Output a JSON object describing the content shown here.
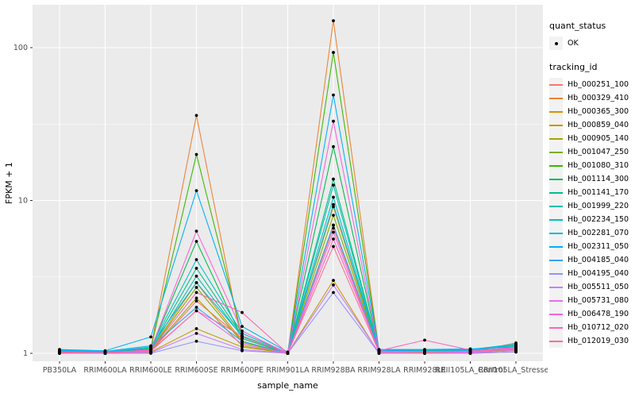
{
  "figure": {
    "background": "#FFFFFF",
    "panel_background": "#EBEBEB",
    "gridline_color": "#FFFFFF",
    "tick_color": "#333333",
    "tick_label_color": "#4D4D4D",
    "point_color": "#000000",
    "legend_key_background": "#F2F2F2"
  },
  "chart_data": {
    "type": "line",
    "title": "",
    "xlabel": "sample_name",
    "ylabel": "FPKM + 1",
    "y_scale": "log10",
    "ylim_px_note": "log scale, breaks 1/10/100",
    "y_ticks": [
      1,
      10,
      100
    ],
    "y_tick_labels": [
      "1",
      "10",
      "100"
    ],
    "y_minor_ticks": [
      3.162,
      31.623
    ],
    "grid": "on",
    "legend_position": "right",
    "categories": [
      "PB350LA",
      "RRIM600LA",
      "RRIM600LE",
      "RRIM600SE",
      "RRIM600PE",
      "RRIM901LA",
      "RRIM928BA",
      "RRIM928LA",
      "RRIM928LE",
      "RRII105LA_Control",
      "RRII105LA_Stressed"
    ],
    "series": [
      {
        "name": "Hb_000251_100",
        "color": "#F8766D",
        "values": [
          1.02,
          1.01,
          1.03,
          2.2,
          1.25,
          1.0,
          6.6,
          1.02,
          1.01,
          1.02,
          1.17
        ]
      },
      {
        "name": "Hb_000329_410",
        "color": "#EA8331",
        "values": [
          1.0,
          1.0,
          1.08,
          36,
          1.15,
          1.0,
          150,
          1.04,
          1.0,
          1.0,
          1.05
        ]
      },
      {
        "name": "Hb_000365_300",
        "color": "#D89000",
        "values": [
          1.02,
          1.0,
          1.05,
          2.9,
          1.2,
          1.0,
          9.1,
          1.02,
          1.03,
          1.02,
          1.08
        ]
      },
      {
        "name": "Hb_000859_040",
        "color": "#C09B00",
        "values": [
          1.0,
          1.0,
          1.02,
          1.45,
          1.1,
          1.0,
          3.0,
          1.0,
          1.0,
          1.0,
          1.02
        ]
      },
      {
        "name": "Hb_000905_140",
        "color": "#A3A500",
        "values": [
          1.01,
          1.0,
          1.04,
          2.3,
          1.12,
          1.0,
          6.9,
          1.02,
          1.0,
          1.01,
          1.04
        ]
      },
      {
        "name": "Hb_001047_250",
        "color": "#7CAE00",
        "values": [
          1.02,
          1.01,
          1.05,
          2.7,
          1.18,
          1.0,
          8.0,
          1.03,
          1.02,
          1.02,
          1.06
        ]
      },
      {
        "name": "Hb_001080_310",
        "color": "#39B600",
        "values": [
          1.0,
          1.0,
          1.08,
          20,
          1.3,
          1.0,
          93,
          1.04,
          1.02,
          1.01,
          1.08
        ]
      },
      {
        "name": "Hb_001114_300",
        "color": "#00BB4E",
        "values": [
          1.02,
          1.01,
          1.07,
          5.4,
          1.25,
          1.0,
          22.5,
          1.03,
          1.03,
          1.02,
          1.1
        ]
      },
      {
        "name": "Hb_001141_170",
        "color": "#00C087",
        "values": [
          1.03,
          1.02,
          1.08,
          3.6,
          1.3,
          1.01,
          13.8,
          1.04,
          1.04,
          1.05,
          1.12
        ]
      },
      {
        "name": "Hb_001999_220",
        "color": "#00C0AF",
        "values": [
          1.03,
          1.02,
          1.06,
          3.2,
          1.28,
          1.01,
          12.6,
          1.04,
          1.04,
          1.05,
          1.13
        ]
      },
      {
        "name": "Hb_002234_150",
        "color": "#00BFC4",
        "values": [
          1.04,
          1.02,
          1.1,
          4.1,
          1.35,
          1.01,
          10.5,
          1.05,
          1.05,
          1.06,
          1.15
        ]
      },
      {
        "name": "Hb_002281_070",
        "color": "#00BAE0",
        "values": [
          1.05,
          1.03,
          1.12,
          2.9,
          1.3,
          1.01,
          9.4,
          1.05,
          1.05,
          1.06,
          1.13
        ]
      },
      {
        "name": "Hb_002311_050",
        "color": "#00B0F6",
        "values": [
          1.06,
          1.04,
          1.28,
          11.6,
          1.5,
          1.02,
          49,
          1.06,
          1.06,
          1.07,
          1.1
        ]
      },
      {
        "name": "Hb_004185_040",
        "color": "#35A2FF",
        "values": [
          1.04,
          1.02,
          1.1,
          2.0,
          1.2,
          1.0,
          6.9,
          1.04,
          1.03,
          1.04,
          1.09
        ]
      },
      {
        "name": "Hb_004195_040",
        "color": "#9590FF",
        "values": [
          1.0,
          1.0,
          1.0,
          1.2,
          1.04,
          1.0,
          2.5,
          1.0,
          1.0,
          1.0,
          1.02
        ]
      },
      {
        "name": "Hb_005511_050",
        "color": "#C77CFF",
        "values": [
          1.0,
          1.0,
          1.01,
          1.35,
          1.06,
          1.0,
          2.8,
          1.01,
          1.0,
          1.0,
          1.05
        ]
      },
      {
        "name": "Hb_005731_080",
        "color": "#E76BF3",
        "values": [
          1.01,
          1.0,
          1.03,
          1.9,
          1.15,
          1.0,
          6.2,
          1.02,
          1.02,
          1.01,
          1.08
        ]
      },
      {
        "name": "Hb_006478_190",
        "color": "#FA62DB",
        "values": [
          1.01,
          1.0,
          1.06,
          6.3,
          1.4,
          1.0,
          33,
          1.03,
          1.03,
          1.02,
          1.1
        ]
      },
      {
        "name": "Hb_010712_020",
        "color": "#FF62BC",
        "values": [
          1.02,
          1.01,
          1.05,
          2.5,
          1.85,
          1.0,
          5.6,
          1.04,
          1.22,
          1.05,
          1.08
        ]
      },
      {
        "name": "Hb_012019_030",
        "color": "#FF6A98",
        "values": [
          1.01,
          1.0,
          1.04,
          1.9,
          1.3,
          1.0,
          5.0,
          1.02,
          1.02,
          1.03,
          1.06
        ]
      }
    ],
    "legend": {
      "quant_status_title": "quant_status",
      "quant_status_entries": [
        "OK"
      ],
      "tracking_title": "tracking_id"
    }
  }
}
